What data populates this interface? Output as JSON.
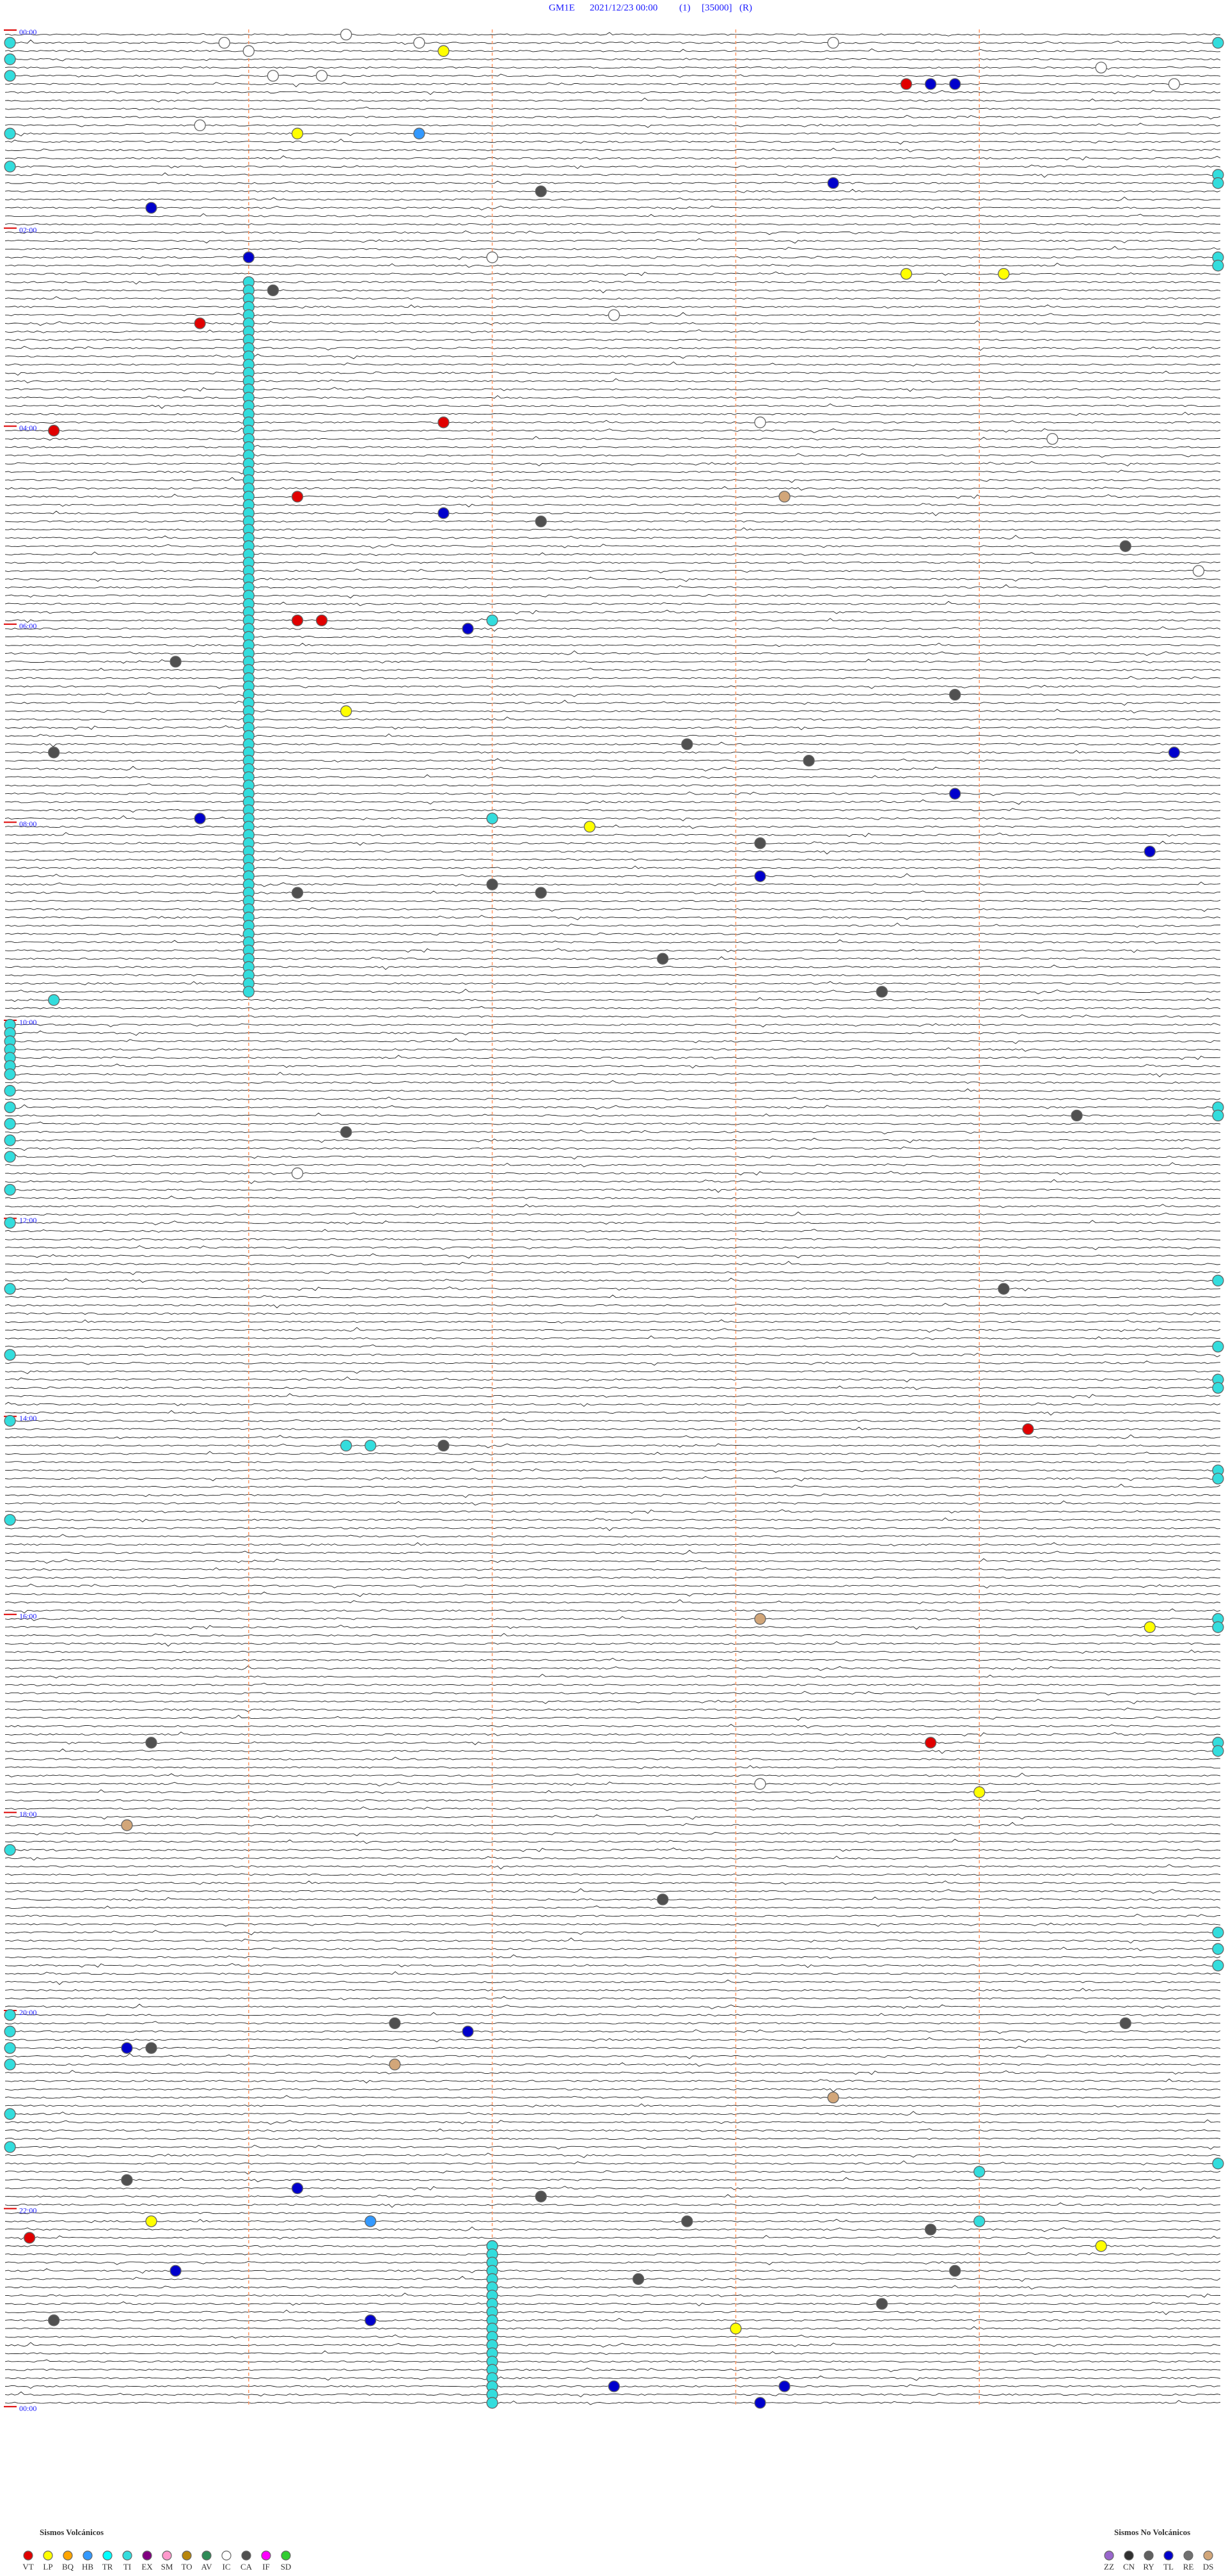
{
  "header": {
    "station": "GM1E",
    "start": "2021/12/23 00:00",
    "channel": "(1)",
    "scale": "[35000]",
    "mode": "(R)"
  },
  "hour_labels": [
    "00:00",
    "02:00",
    "04:00",
    "06:00",
    "08:00",
    "10:00",
    "12:00",
    "14:00",
    "16:00",
    "18:00",
    "20:00",
    "22:00",
    "00:00"
  ],
  "legend": {
    "volcanic": {
      "title": "Sismos Volcánicos",
      "items": [
        {
          "code": "VT",
          "color": "#e00000"
        },
        {
          "code": "LP",
          "color": "#ffff00"
        },
        {
          "code": "BQ",
          "color": "#ffa500"
        },
        {
          "code": "HB",
          "color": "#3399ff"
        },
        {
          "code": "TR",
          "color": "#00ffff"
        },
        {
          "code": "TI",
          "color": "#33dddd"
        },
        {
          "code": "EX",
          "color": "#800080"
        },
        {
          "code": "SM",
          "color": "#ff99cc"
        },
        {
          "code": "TO",
          "color": "#b8860b"
        },
        {
          "code": "AV",
          "color": "#2e8b57"
        },
        {
          "code": "IC",
          "color": "#ffffff"
        },
        {
          "code": "CA",
          "color": "#505050"
        },
        {
          "code": "IF",
          "color": "#ff00ff"
        },
        {
          "code": "SD",
          "color": "#32cd32"
        }
      ]
    },
    "non_volcanic": {
      "title": "Sismos No Volcánicos",
      "items": [
        {
          "code": "ZZ",
          "color": "#9966cc"
        },
        {
          "code": "CN",
          "color": "#303030"
        },
        {
          "code": "RY",
          "color": "#606060"
        },
        {
          "code": "TL",
          "color": "#0000cc"
        },
        {
          "code": "RE",
          "color": "#707070"
        },
        {
          "code": "DS",
          "color": "#d2a679"
        }
      ]
    }
  },
  "events": [
    [
      "IC",
      1.4
    ],
    [
      "IC",
      5.9
    ],
    [
      "IC",
      6.7
    ],
    [
      "IC",
      8.4
    ],
    [
      "IC",
      11.0
    ],
    [
      "LP",
      11.8
    ],
    [
      "IC",
      24.5
    ],
    [
      "IC",
      26.1
    ],
    [
      "IC",
      26.3
    ],
    [
      "VT",
      33.7
    ],
    [
      "TL",
      33.8
    ],
    [
      "TL",
      33.9
    ],
    [
      "IC",
      34.8
    ],
    [
      "IC",
      55.8
    ],
    [
      "LP",
      61.2
    ],
    [
      "HB",
      61.7
    ],
    [
      "TL",
      93.4
    ],
    [
      "CA",
      97.2
    ],
    [
      "TL",
      105.6
    ],
    [
      "TL",
      136.0
    ],
    [
      "IC",
      137.0
    ],
    [
      "LP",
      148.7
    ],
    [
      "LP",
      149.1
    ],
    [
      "CA",
      156.1
    ],
    [
      "IC",
      172.5
    ],
    [
      "VT",
      175.8
    ],
    [
      "VT",
      236.8
    ],
    [
      "IC",
      238.1
    ],
    [
      "VT",
      240.2
    ],
    [
      "IC",
      249.3
    ],
    [
      "VT",
      281.2
    ],
    [
      "DS",
      283.2
    ],
    [
      "TL",
      291.8
    ],
    [
      "CA",
      297.2
    ],
    [
      "CA",
      314.6
    ],
    [
      "IC",
      329.9
    ],
    [
      "VT",
      356.2
    ],
    [
      "VT",
      356.3
    ],
    [
      "TI",
      357.0
    ],
    [
      "TL",
      361.9
    ],
    [
      "CA",
      380.7
    ],
    [
      "CA",
      403.9
    ],
    [
      "LP",
      411.4
    ],
    [
      "CA",
      432.8
    ],
    [
      "CA",
      435.2
    ],
    [
      "TL",
      439.8
    ],
    [
      "CA",
      443.3
    ],
    [
      "TL",
      463.9
    ],
    [
      "TL",
      475.8
    ],
    [
      "TI",
      477.0
    ],
    [
      "LP",
      482.4
    ],
    [
      "CA",
      493.1
    ],
    [
      "TL",
      499.7
    ],
    [
      "TL",
      513.1
    ],
    [
      "CA",
      517.0
    ],
    [
      "CA",
      521.2
    ],
    [
      "CA",
      522.2
    ],
    [
      "CA",
      562.7
    ],
    [
      "CA",
      583.6
    ],
    [
      "TI",
      585.2
    ],
    [
      "CA",
      659.4
    ],
    [
      "CA",
      666.4
    ],
    [
      "IC",
      691.2
    ],
    [
      "CA",
      764.1
    ],
    [
      "VT",
      849.2
    ],
    [
      "TI",
      856.4
    ],
    [
      "TI",
      856.5
    ],
    [
      "CA",
      856.8
    ],
    [
      "DS",
      963.1
    ],
    [
      "LP",
      969.7
    ],
    [
      "CA",
      1035.6
    ],
    [
      "VT",
      1038.8
    ],
    [
      "IC",
      1063.1
    ],
    [
      "LP",
      1069.0
    ],
    [
      "DS",
      1085.5
    ],
    [
      "CA",
      1132.7
    ],
    [
      "CA",
      1206.6
    ],
    [
      "CA",
      1209.6
    ],
    [
      "TL",
      1211.9
    ],
    [
      "TL",
      1220.5
    ],
    [
      "CA",
      1220.6
    ],
    [
      "DS",
      1231.6
    ],
    [
      "DS",
      1253.4
    ],
    [
      "TI",
      1299.0
    ],
    [
      "CA",
      1300.5
    ],
    [
      "TL",
      1306.2
    ],
    [
      "CA",
      1312.2
    ],
    [
      "LP",
      1325.6
    ],
    [
      "HB",
      1326.5
    ],
    [
      "CA",
      1327.8
    ],
    [
      "TI",
      1329.0
    ],
    [
      "CA",
      1333.8
    ],
    [
      "VT",
      1335.1
    ],
    [
      "CA",
      1342.0
    ],
    [
      "LP",
      1344.5
    ],
    [
      "TL",
      1355.7
    ],
    [
      "CA",
      1358.9
    ],
    [
      "CA",
      1362.6
    ],
    [
      "CA",
      1378.6
    ],
    [
      "CA",
      1385.2
    ],
    [
      "TL",
      1386.5
    ],
    [
      "LP",
      1393.0
    ],
    [
      "TL",
      1427.5
    ],
    [
      "TL",
      1428.2
    ],
    [
      "TL",
      1438.1
    ],
    [
      "TI",
      151
    ],
    [
      "TI",
      156
    ],
    [
      "TI",
      161
    ],
    [
      "TI",
      166
    ],
    [
      "TI",
      171
    ],
    [
      "TI",
      176
    ],
    [
      "TI",
      181
    ],
    [
      "TI",
      186
    ],
    [
      "TI",
      191
    ],
    [
      "TI",
      196
    ],
    [
      "TI",
      201
    ],
    [
      "TI",
      206
    ],
    [
      "TI",
      211
    ],
    [
      "TI",
      216
    ],
    [
      "TI",
      221
    ],
    [
      "TI",
      226
    ],
    [
      "TI",
      231
    ],
    [
      "TI",
      236
    ],
    [
      "TI",
      241
    ],
    [
      "TI",
      246
    ],
    [
      "TI",
      251
    ],
    [
      "TI",
      256
    ],
    [
      "TI",
      261
    ],
    [
      "TI",
      266
    ],
    [
      "TI",
      271
    ],
    [
      "TI",
      276
    ],
    [
      "TI",
      281
    ],
    [
      "TI",
      286
    ],
    [
      "TI",
      291
    ],
    [
      "TI",
      296
    ],
    [
      "TI",
      301
    ],
    [
      "TI",
      306
    ],
    [
      "TI",
      311
    ],
    [
      "TI",
      316
    ],
    [
      "TI",
      321
    ],
    [
      "TI",
      326
    ],
    [
      "TI",
      331
    ],
    [
      "TI",
      336
    ],
    [
      "TI",
      341
    ],
    [
      "TI",
      346
    ],
    [
      "TI",
      351
    ],
    [
      "TI",
      356
    ],
    [
      "TI",
      361
    ],
    [
      "TI",
      366
    ],
    [
      "TI",
      371
    ],
    [
      "TI",
      376
    ],
    [
      "TI",
      381
    ],
    [
      "TI",
      386
    ],
    [
      "TI",
      391
    ],
    [
      "TI",
      396
    ],
    [
      "TI",
      401
    ],
    [
      "TI",
      406
    ],
    [
      "TI",
      411
    ],
    [
      "TI",
      416
    ],
    [
      "TI",
      421
    ],
    [
      "TI",
      426
    ],
    [
      "TI",
      431
    ],
    [
      "TI",
      436
    ],
    [
      "TI",
      441
    ],
    [
      "TI",
      446
    ],
    [
      "TI",
      451
    ],
    [
      "TI",
      456
    ],
    [
      "TI",
      461
    ],
    [
      "TI",
      466
    ],
    [
      "TI",
      471
    ],
    [
      "TI",
      476
    ],
    [
      "TI",
      481
    ],
    [
      "TI",
      486
    ],
    [
      "TI",
      491
    ],
    [
      "TI",
      496
    ],
    [
      "TI",
      501
    ],
    [
      "TI",
      506
    ],
    [
      "TI",
      511
    ],
    [
      "TI",
      516
    ],
    [
      "TI",
      521
    ],
    [
      "TI",
      526
    ],
    [
      "TI",
      531
    ],
    [
      "TI",
      536
    ],
    [
      "TI",
      541
    ],
    [
      "TI",
      546
    ],
    [
      "TI",
      551
    ],
    [
      "TI",
      556
    ],
    [
      "TI",
      561
    ],
    [
      "TI",
      566
    ],
    [
      "TI",
      571
    ],
    [
      "TI",
      576
    ],
    [
      "TI",
      581
    ],
    [
      "TI",
      1342
    ],
    [
      "TI",
      1347
    ],
    [
      "TI",
      1352
    ],
    [
      "TI",
      1357
    ],
    [
      "TI",
      1362
    ],
    [
      "TI",
      1367
    ],
    [
      "TI",
      1372
    ],
    [
      "TI",
      1377
    ],
    [
      "TI",
      1382
    ],
    [
      "TI",
      1387
    ],
    [
      "TI",
      1392
    ],
    [
      "TI",
      1397
    ],
    [
      "TI",
      1402
    ],
    [
      "TI",
      1407
    ],
    [
      "TI",
      1412
    ],
    [
      "TI",
      1417
    ],
    [
      "TI",
      1422
    ],
    [
      "TI",
      1427
    ],
    [
      "TI",
      1432
    ],
    [
      "TI",
      1437
    ],
    [
      "TI",
      5.02
    ],
    [
      "TI",
      15.02
    ],
    [
      "TI",
      25.02
    ],
    [
      "TI",
      60.02
    ],
    [
      "TI",
      80.02
    ],
    [
      "TI",
      600.02
    ],
    [
      "TI",
      605.02
    ],
    [
      "TI",
      610.02
    ],
    [
      "TI",
      615.02
    ],
    [
      "TI",
      620.02
    ],
    [
      "TI",
      625.02
    ],
    [
      "TI",
      630.02
    ],
    [
      "TI",
      640.02
    ],
    [
      "TI",
      650.02
    ],
    [
      "TI",
      660.02
    ],
    [
      "TI",
      670.02
    ],
    [
      "TI",
      680.02
    ],
    [
      "TI",
      700.02
    ],
    [
      "TI",
      720.02
    ],
    [
      "TI",
      760.02
    ],
    [
      "TI",
      800.02
    ],
    [
      "TI",
      840.02
    ],
    [
      "TI",
      900.02
    ],
    [
      "TI",
      1100.02
    ],
    [
      "TI",
      1200.02
    ],
    [
      "TI",
      1210.02
    ],
    [
      "TI",
      1220.02
    ],
    [
      "TI",
      1230.02
    ],
    [
      "TI",
      1260.02
    ],
    [
      "TI",
      1280.02
    ],
    [
      "TI",
      9.98
    ],
    [
      "TI",
      89.98
    ],
    [
      "TI",
      94.98
    ],
    [
      "TI",
      139.98
    ],
    [
      "TI",
      144.98
    ],
    [
      "TI",
      654.98
    ],
    [
      "TI",
      659.98
    ],
    [
      "TI",
      759.98
    ],
    [
      "TI",
      799.98
    ],
    [
      "TI",
      819.98
    ],
    [
      "TI",
      824.98
    ],
    [
      "TI",
      874.98
    ],
    [
      "TI",
      879.98
    ],
    [
      "TI",
      964.98
    ],
    [
      "TI",
      969.98
    ],
    [
      "TI",
      1039.98
    ],
    [
      "TI",
      1044.98
    ],
    [
      "TI",
      1154.98
    ],
    [
      "TI",
      1164.98
    ],
    [
      "TI",
      1174.98
    ],
    [
      "TI",
      1294.98
    ]
  ]
}
